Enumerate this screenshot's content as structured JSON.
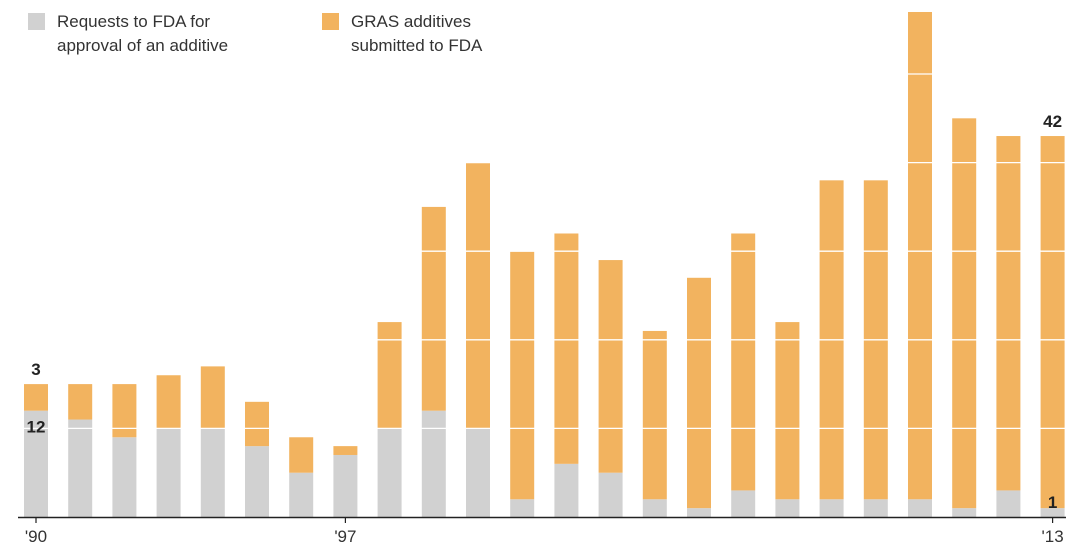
{
  "legend": {
    "fda_label": "Requests to FDA for\napproval of an additive",
    "gras_label": "GRAS additives\nsubmitted to FDA"
  },
  "colors": {
    "fda": "#d1d1d1",
    "gras": "#f2b35f",
    "axis": "#222222",
    "gridline": "#ffffff"
  },
  "chart_data": {
    "type": "bar",
    "stacked": true,
    "categories": [
      "1990",
      "1991",
      "1992",
      "1993",
      "1994",
      "1995",
      "1996",
      "1997",
      "1998",
      "1999",
      "2000",
      "2001",
      "2002",
      "2003",
      "2004",
      "2005",
      "2006",
      "2007",
      "2008",
      "2009",
      "2010",
      "2011",
      "2012",
      "2013"
    ],
    "x_tick_labels": [
      {
        "category": "1990",
        "label": "'90"
      },
      {
        "category": "1997",
        "label": "'97"
      },
      {
        "category": "2013",
        "label": "'13"
      }
    ],
    "series": [
      {
        "name": "Requests to FDA for approval of an additive",
        "color": "#d1d1d1",
        "values": [
          12,
          11,
          9,
          10,
          10,
          8,
          5,
          7,
          10,
          12,
          10,
          2,
          6,
          5,
          2,
          1,
          3,
          2,
          2,
          2,
          2,
          1,
          3,
          1
        ]
      },
      {
        "name": "GRAS additives submitted to FDA",
        "color": "#f2b35f",
        "values": [
          3,
          4,
          6,
          6,
          7,
          5,
          4,
          1,
          12,
          23,
          30,
          28,
          26,
          24,
          19,
          26,
          29,
          20,
          36,
          36,
          55,
          44,
          40,
          42
        ]
      }
    ],
    "data_labels": [
      {
        "category": "1990",
        "series": 1,
        "text": "3"
      },
      {
        "category": "1990",
        "series": 0,
        "text": "12"
      },
      {
        "category": "2013",
        "series": 1,
        "text": "42"
      },
      {
        "category": "2013",
        "series": 0,
        "text": "1"
      }
    ],
    "ylim": [
      0,
      57
    ],
    "gridlines": [
      10,
      20,
      30,
      40,
      50
    ],
    "grid": true,
    "legend_position": "top-left",
    "title": "",
    "xlabel": "",
    "ylabel": ""
  }
}
